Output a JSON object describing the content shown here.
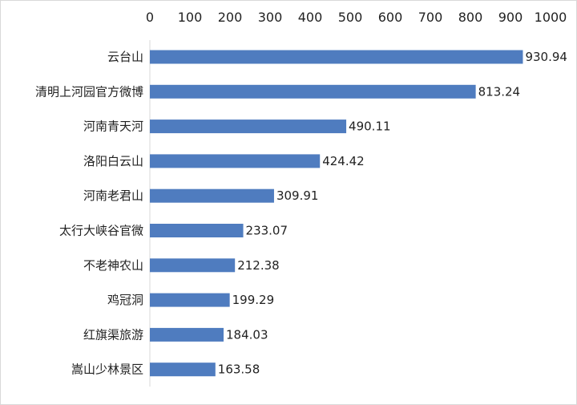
{
  "chart_data": {
    "type": "bar",
    "orientation": "horizontal",
    "title": "",
    "xlabel": "",
    "ylabel": "",
    "xlim": [
      0,
      1000
    ],
    "x_ticks": [
      0,
      100,
      200,
      300,
      400,
      500,
      600,
      700,
      800,
      900,
      1000
    ],
    "axis_position": "top",
    "grid": false,
    "legend": false,
    "bar_color": "#4f7cbf",
    "categories": [
      "云台山",
      "清明上河园官方微博",
      "河南青天河",
      "洛阳白云山",
      "河南老君山",
      "太行大峡谷官微",
      "不老神农山",
      "鸡冠洞",
      "红旗渠旅游",
      "嵩山少林景区"
    ],
    "values": [
      930.94,
      813.24,
      490.11,
      424.42,
      309.91,
      233.07,
      212.38,
      199.29,
      184.03,
      163.58
    ],
    "data_labels": [
      "930.94",
      "813.24",
      "490.11",
      "424.42",
      "309.91",
      "233.07",
      "212.38",
      "199.29",
      "184.03",
      "163.58"
    ]
  }
}
